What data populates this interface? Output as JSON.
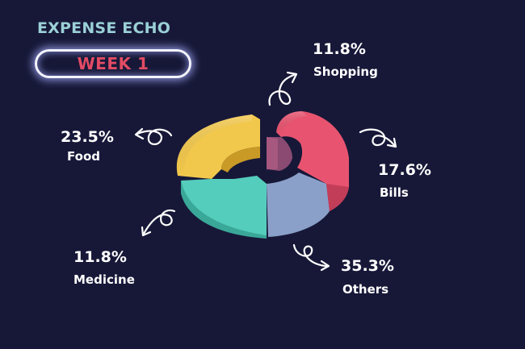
{
  "header": {
    "title": "EXPENSE ECHO",
    "week": "WEEK 1"
  },
  "chart_data": {
    "type": "pie",
    "style": "3d-donut",
    "categories": [
      "Shopping",
      "Bills",
      "Others",
      "Medicine",
      "Food"
    ],
    "values": [
      11.8,
      17.6,
      35.3,
      11.8,
      23.5
    ],
    "value_labels": [
      "11.8%",
      "17.6%",
      "35.3%",
      "11.8%",
      "23.5%"
    ],
    "colors": [
      "#e8546f",
      "#e8546f",
      "#8aa0c9",
      "#55cdbd",
      "#f2c84c"
    ],
    "title": "",
    "legend": "none"
  }
}
